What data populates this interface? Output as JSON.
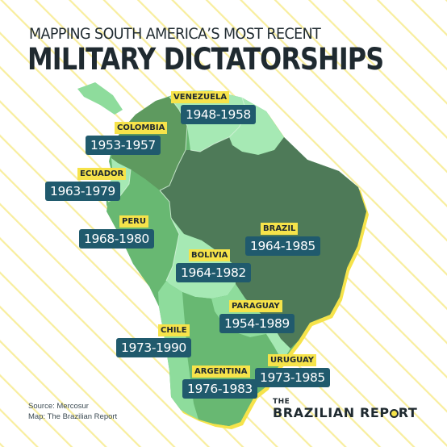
{
  "title": {
    "line1": "MAPPING SOUTH AMERICA’S MOST RECENT",
    "line2": "MILITARY DICTATORSHIPS"
  },
  "countries": [
    {
      "key": "venezuela",
      "name": "VENEZUELA",
      "years": "1948-1958"
    },
    {
      "key": "colombia",
      "name": "COLOMBIA",
      "years": "1953-1957"
    },
    {
      "key": "ecuador",
      "name": "ECUADOR",
      "years": "1963-1979"
    },
    {
      "key": "peru",
      "name": "PERU",
      "years": "1968-1980"
    },
    {
      "key": "bolivia",
      "name": "BOLIVIA",
      "years": "1964-1982"
    },
    {
      "key": "brazil",
      "name": "BRAZIL",
      "years": "1964-1985"
    },
    {
      "key": "paraguay",
      "name": "PARAGUAY",
      "years": "1954-1989"
    },
    {
      "key": "chile",
      "name": "CHILE",
      "years": "1973-1990"
    },
    {
      "key": "argentina",
      "name": "ARGENTINA",
      "years": "1976-1983"
    },
    {
      "key": "uruguay",
      "name": "URUGUAY",
      "years": "1973-1985"
    }
  ],
  "source": {
    "line1": "Source: Mercosur",
    "line2": "Map: The Brazilian Report"
  },
  "brand": {
    "the": "THE",
    "name_part1": "BRAZILIAN REP",
    "name_part2": "RT"
  },
  "colors": {
    "background": "#ffffff",
    "stripes": "#f8ee9e",
    "coast_highlight": "#f6e34a",
    "brazil": "#4e7a58",
    "dark_green": "#5e9a5f",
    "mid_green": "#68b872",
    "light_green": "#8edc9c",
    "pale_green": "#a6e9b4",
    "label_bg": "#f6e34a",
    "years_bg": "#205a6d"
  }
}
